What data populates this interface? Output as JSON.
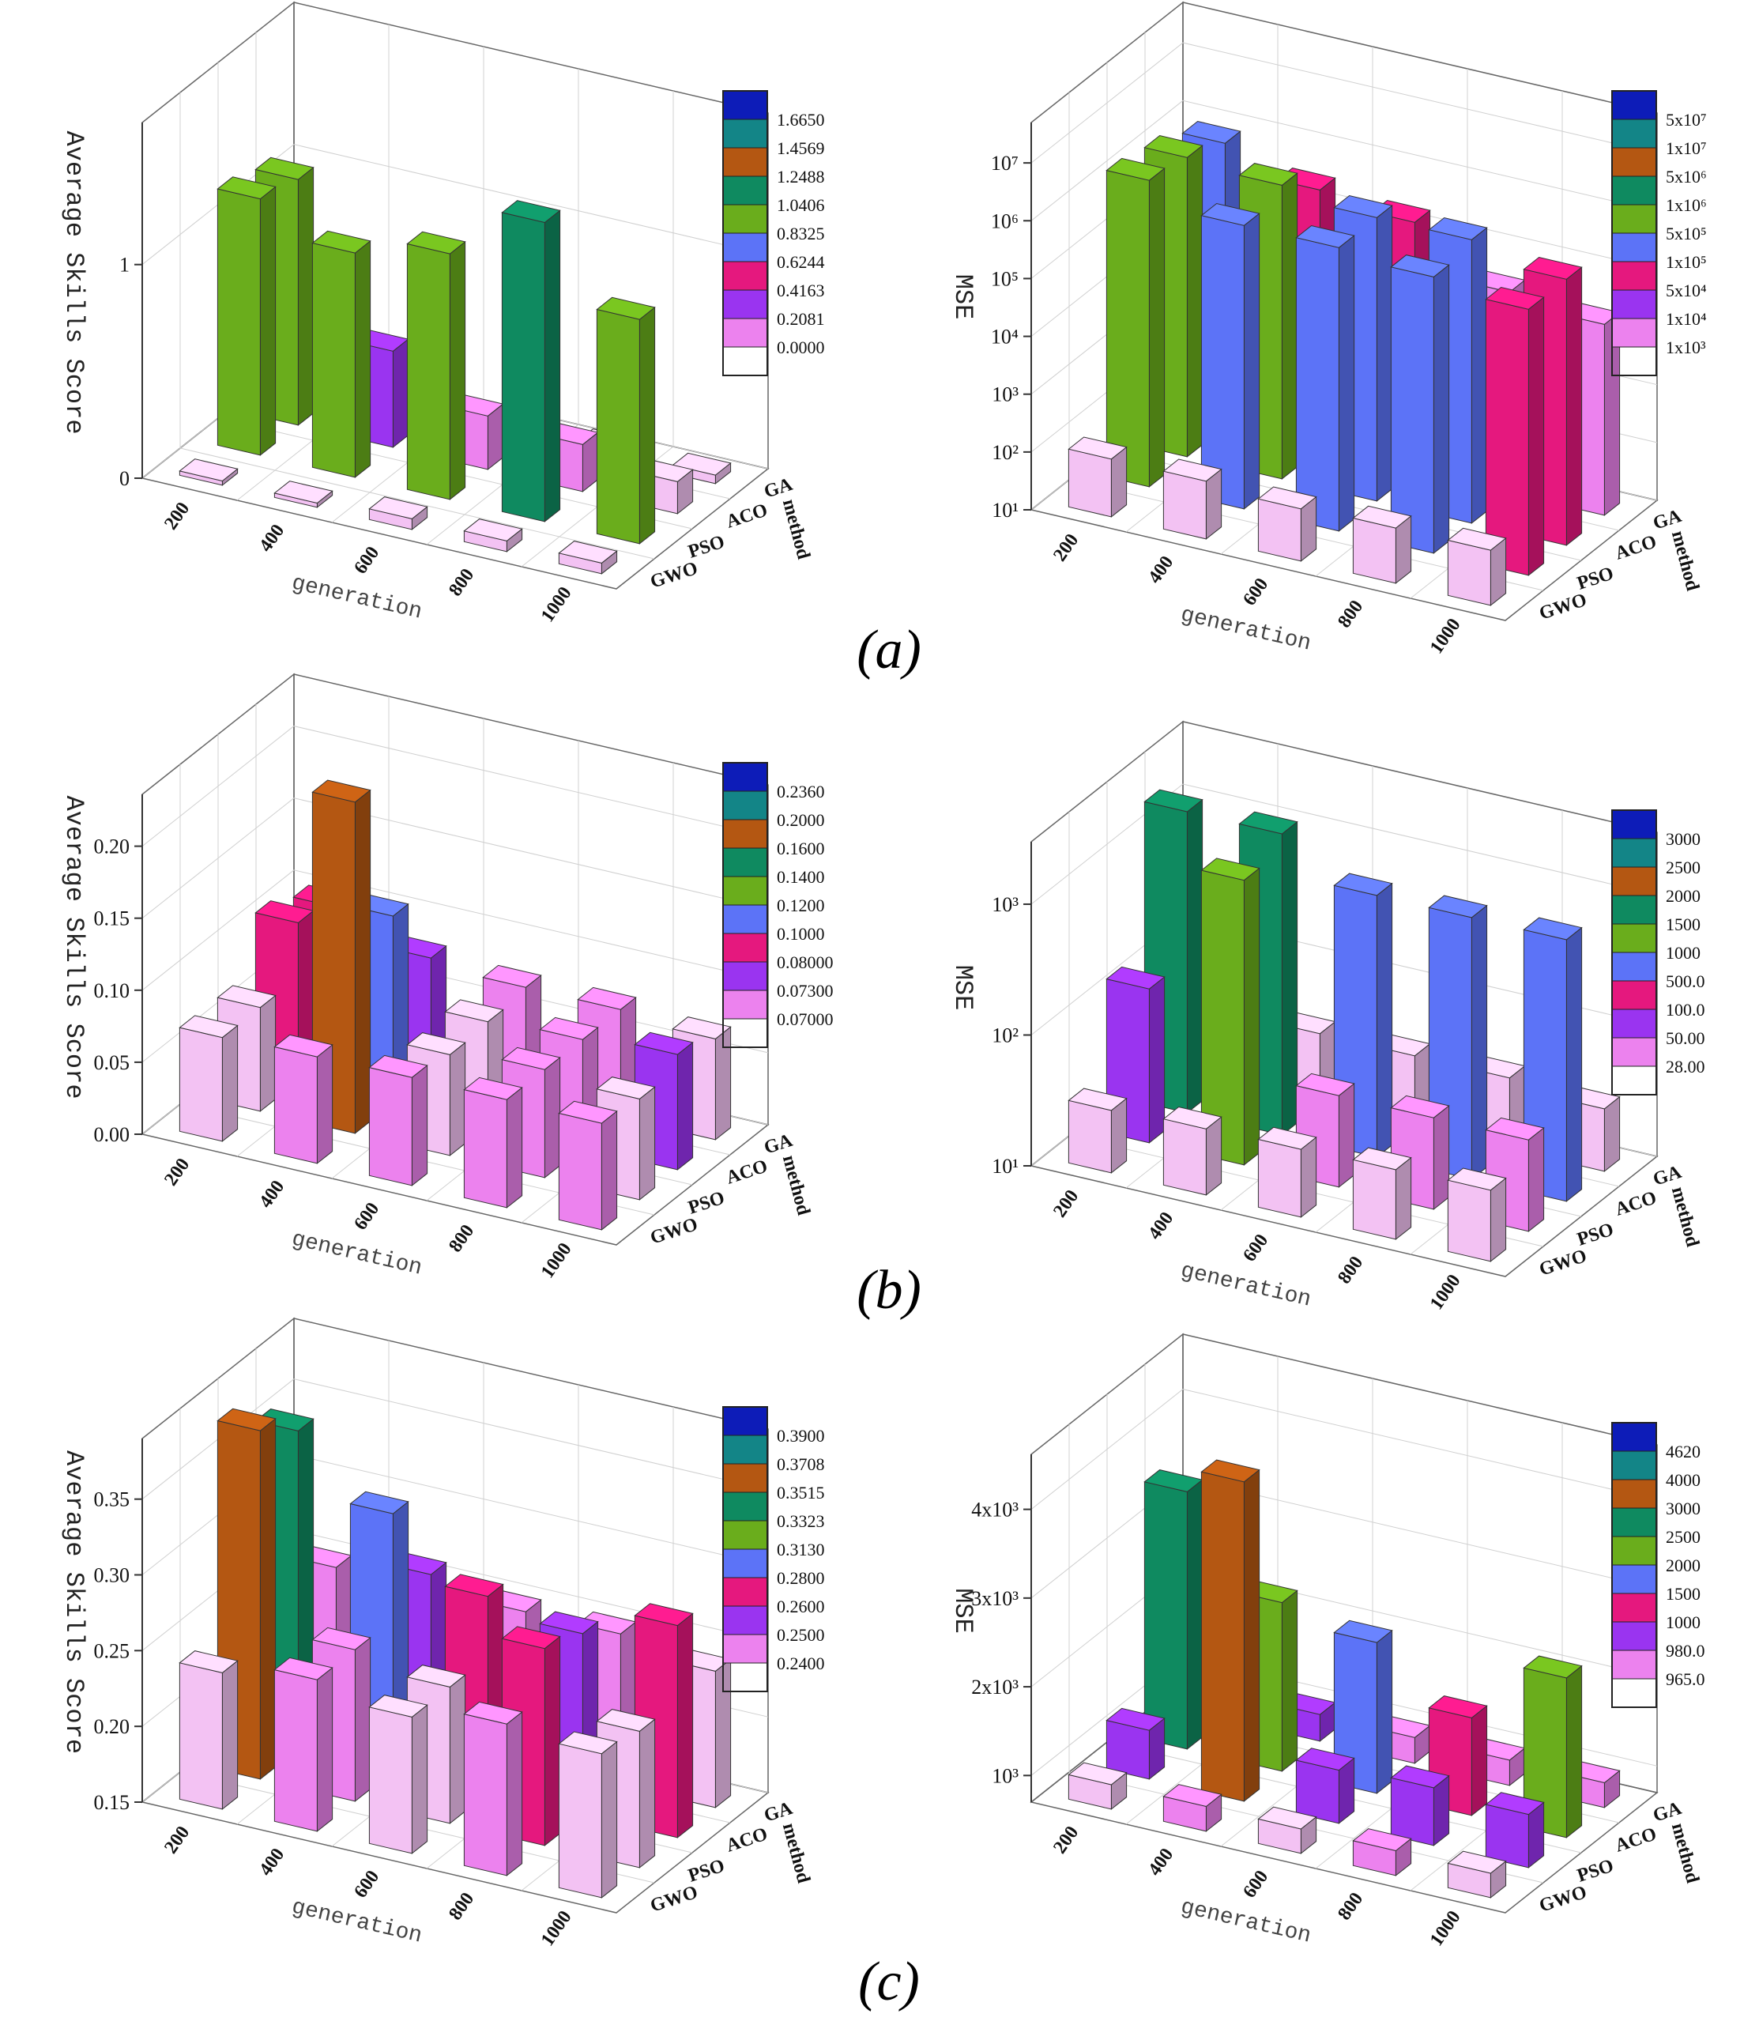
{
  "panel_labels": [
    "(a)",
    "(b)",
    "(c)"
  ],
  "chart_data": [
    {
      "type": "bar",
      "subtype": "3d-bar",
      "panel": "a",
      "ylabel": "Average Skills Score",
      "xlabel": "generation",
      "zlabel": "method",
      "x": [
        "200",
        "400",
        "600",
        "800",
        "1000"
      ],
      "methods": [
        "GA",
        "ACO",
        "PSO",
        "GWO"
      ],
      "scale": "linear",
      "ylim": [
        0,
        1.665
      ],
      "yticks": [
        "0",
        "1"
      ],
      "ytick_values": [
        0,
        1
      ],
      "legend": [
        "1.6650",
        "1.4569",
        "1.2488",
        "1.0406",
        "0.8325",
        "0.6244",
        "0.4163",
        "0.2081",
        "0.0000"
      ],
      "legend_values": [
        1.665,
        1.4569,
        1.2488,
        1.0406,
        0.8325,
        0.6244,
        0.4163,
        0.2081,
        0.0
      ],
      "series": [
        {
          "name": "GA",
          "values": [
            0.1,
            0.08,
            0.06,
            0.05,
            0.04
          ]
        },
        {
          "name": "ACO",
          "values": [
            1.15,
            0.45,
            0.25,
            0.22,
            0.15
          ]
        },
        {
          "name": "PSO",
          "values": [
            1.2,
            1.05,
            1.15,
            1.4,
            1.05
          ]
        },
        {
          "name": "GWO",
          "values": [
            0.02,
            0.02,
            0.05,
            0.05,
            0.05
          ]
        }
      ]
    },
    {
      "type": "bar",
      "subtype": "3d-bar",
      "panel": "a",
      "ylabel": "MSE",
      "xlabel": "generation",
      "zlabel": "method",
      "x": [
        "200",
        "400",
        "600",
        "800",
        "1000"
      ],
      "methods": [
        "GA",
        "ACO",
        "PSO",
        "GWO"
      ],
      "scale": "log",
      "ylim": [
        10,
        50000000
      ],
      "yticks": [
        "10¹",
        "10²",
        "10³",
        "10⁴",
        "10⁵",
        "10⁶",
        "10⁷"
      ],
      "ytick_values": [
        10,
        100,
        1000,
        10000,
        100000,
        1000000,
        10000000
      ],
      "legend": [
        "5x10⁷",
        "1x10⁷",
        "5x10⁶",
        "1x10⁶",
        "5x10⁵",
        "1x10⁵",
        "5x10⁴",
        "1x10⁴",
        "1x10³"
      ],
      "legend_values": [
        50000000,
        10000000,
        5000000,
        1000000,
        500000,
        100000,
        50000,
        10000,
        1000
      ],
      "series": [
        {
          "name": "GA",
          "values": [
            800000,
            300000,
            200000,
            30000,
            20000
          ]
        },
        {
          "name": "ACO",
          "values": [
            1500000,
            1200000,
            800000,
            800000,
            400000
          ]
        },
        {
          "name": "PSO",
          "values": [
            2000000,
            800000,
            800000,
            600000,
            400000
          ]
        },
        {
          "name": "GWO",
          "values": [
            100,
            100,
            80,
            90,
            90
          ]
        }
      ]
    },
    {
      "type": "bar",
      "subtype": "3d-bar",
      "panel": "b",
      "ylabel": "Average Skills Score",
      "xlabel": "generation",
      "zlabel": "method",
      "x": [
        "200",
        "400",
        "600",
        "800",
        "1000"
      ],
      "methods": [
        "GA",
        "ACO",
        "PSO",
        "GWO"
      ],
      "scale": "linear",
      "ylim": [
        0,
        0.236
      ],
      "yticks": [
        "0.00",
        "0.05",
        "0.10",
        "0.15",
        "0.20"
      ],
      "ytick_values": [
        0,
        0.05,
        0.1,
        0.15,
        0.2
      ],
      "legend": [
        "0.2360",
        "0.2000",
        "0.1600",
        "0.1400",
        "0.1200",
        "0.1000",
        "0.08000",
        "0.07300",
        "0.07000"
      ],
      "legend_values": [
        0.236,
        0.2,
        0.16,
        0.14,
        0.12,
        0.1,
        0.08,
        0.073,
        0.07
      ],
      "series": [
        {
          "name": "GA",
          "values": [
            0.1,
            0.08,
            0.075,
            0.075,
            0.07
          ]
        },
        {
          "name": "ACO",
          "values": [
            0.11,
            0.13,
            0.072,
            0.075,
            0.08
          ]
        },
        {
          "name": "PSO",
          "values": [
            0.072,
            0.23,
            0.07,
            0.075,
            0.07
          ]
        },
        {
          "name": "GWO",
          "values": [
            0.072,
            0.074,
            0.075,
            0.075,
            0.074
          ]
        }
      ]
    },
    {
      "type": "bar",
      "subtype": "3d-bar",
      "panel": "b",
      "ylabel": "MSE",
      "xlabel": "generation",
      "zlabel": "method",
      "x": [
        "200",
        "400",
        "600",
        "800",
        "1000"
      ],
      "methods": [
        "GA",
        "ACO",
        "PSO",
        "GWO"
      ],
      "scale": "log",
      "ylim": [
        10,
        3000
      ],
      "yticks": [
        "10¹",
        "10²",
        "10³"
      ],
      "ytick_values": [
        10,
        100,
        1000
      ],
      "legend": [
        "3000",
        "2500",
        "2000",
        "1500",
        "1000",
        "500.0",
        "100.0",
        "50.00",
        "28.00"
      ],
      "legend_values": [
        3000,
        2500,
        2000,
        1500,
        1000,
        500,
        100,
        50,
        28
      ],
      "series": [
        {
          "name": "GA",
          "values": [
            45,
            35,
            35,
            35,
            30
          ]
        },
        {
          "name": "ACO",
          "values": [
            2000,
            2000,
            1000,
            1000,
            1000
          ]
        },
        {
          "name": "PSO",
          "values": [
            150,
            1500,
            50,
            50,
            50
          ]
        },
        {
          "name": "GWO",
          "values": [
            30,
            32,
            33,
            34,
            35
          ]
        }
      ]
    },
    {
      "type": "bar",
      "subtype": "3d-bar",
      "panel": "c",
      "ylabel": "Average Skills Score",
      "xlabel": "generation",
      "zlabel": "method",
      "x": [
        "200",
        "400",
        "600",
        "800",
        "1000"
      ],
      "methods": [
        "GA",
        "ACO",
        "PSO",
        "GWO"
      ],
      "scale": "linear",
      "ylim": [
        0.15,
        0.39
      ],
      "yticks": [
        "0.15",
        "0.20",
        "0.25",
        "0.30",
        "0.35"
      ],
      "ytick_values": [
        0.15,
        0.2,
        0.25,
        0.3,
        0.35
      ],
      "legend": [
        "0.3900",
        "0.3708",
        "0.3515",
        "0.3323",
        "0.3130",
        "0.2800",
        "0.2600",
        "0.2500",
        "0.2400"
      ],
      "legend_values": [
        0.39,
        0.3708,
        0.3515,
        0.3323,
        0.313,
        0.28,
        0.26,
        0.25,
        0.24
      ],
      "series": [
        {
          "name": "GA",
          "values": [
            0.25,
            0.26,
            0.25,
            0.25,
            0.24
          ]
        },
        {
          "name": "ACO",
          "values": [
            0.36,
            0.32,
            0.28,
            0.27,
            0.29
          ]
        },
        {
          "name": "PSO",
          "values": [
            0.38,
            0.25,
            0.24,
            0.28,
            0.24
          ]
        },
        {
          "name": "GWO",
          "values": [
            0.24,
            0.25,
            0.24,
            0.25,
            0.245
          ]
        }
      ]
    },
    {
      "type": "bar",
      "subtype": "3d-bar",
      "panel": "c",
      "ylabel": "MSE",
      "xlabel": "generation",
      "zlabel": "method",
      "x": [
        "200",
        "400",
        "600",
        "800",
        "1000"
      ],
      "methods": [
        "GA",
        "ACO",
        "PSO",
        "GWO"
      ],
      "scale": "linear",
      "ylim": [
        700,
        4620
      ],
      "yticks": [
        "10³",
        "2x10³",
        "3x10³",
        "4x10³"
      ],
      "ytick_values": [
        1000,
        2000,
        3000,
        4000
      ],
      "legend": [
        "4620",
        "4000",
        "3000",
        "2500",
        "2000",
        "1500",
        "1000",
        "980.0",
        "965.0"
      ],
      "legend_values": [
        4620,
        4000,
        3000,
        2500,
        2000,
        1500,
        1000,
        980,
        965
      ],
      "series": [
        {
          "name": "GA",
          "values": [
            990,
            1000,
            990,
            985,
            980
          ]
        },
        {
          "name": "ACO",
          "values": [
            3600,
            2600,
            2400,
            1800,
            2500
          ]
        },
        {
          "name": "PSO",
          "values": [
            1250,
            4300,
            1300,
            1350,
            1300
          ]
        },
        {
          "name": "GWO",
          "values": [
            975,
            980,
            975,
            980,
            975
          ]
        }
      ]
    }
  ]
}
